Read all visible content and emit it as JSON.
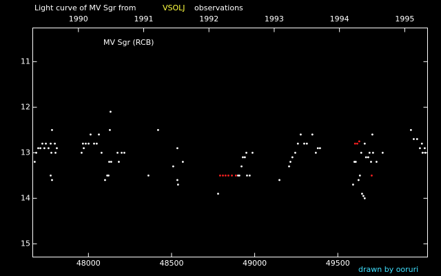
{
  "chart_data": {
    "type": "scatter",
    "title": "Light curve of MV Sgr from",
    "source": "VSOLJ",
    "title_suffix": "observations",
    "annotation": "MV Sgr (RCB)",
    "credit": "drawn by ooruri",
    "xlim": [
      47665,
      50040
    ],
    "xticks": [
      48000,
      48500,
      49000,
      49500
    ],
    "x2lim": [
      1989.3,
      1995.35
    ],
    "x2ticks": [
      1990,
      1991,
      1992,
      1993,
      1994,
      1995
    ],
    "ylim": [
      10.26,
      15.29
    ],
    "yticks": [
      11,
      12,
      13,
      14,
      15
    ],
    "invert_y": true,
    "series": [
      {
        "color": "#ffffff",
        "x": [
          47677,
          47686,
          47698,
          47711,
          47723,
          47735,
          47744,
          47760,
          47773,
          47781,
          47777,
          47773,
          47781,
          47798,
          47802,
          47810,
          47959,
          47967,
          47972,
          47984,
          48001,
          48013,
          48034,
          48050,
          48063,
          48079,
          48100,
          48113,
          48121,
          48133,
          48129,
          48125,
          48137,
          48175,
          48183,
          48200,
          48216,
          48361,
          48419,
          48510,
          48535,
          48535,
          48539,
          48568,
          48780,
          48900,
          48908,
          48921,
          48929,
          48941,
          48950,
          48954,
          48970,
          48987,
          49149,
          49207,
          49215,
          49227,
          49244,
          49260,
          49277,
          49298,
          49314,
          49347,
          49368,
          49380,
          49393,
          49592,
          49600,
          49608,
          49625,
          49633,
          49641,
          49646,
          49654,
          49662,
          49662,
          49670,
          49683,
          49691,
          49700,
          49708,
          49712,
          49733,
          49770,
          49940,
          49957,
          49977,
          49994,
          50006,
          50010,
          50023,
          50027
        ],
        "values": [
          13.2,
          13.0,
          12.9,
          12.9,
          12.8,
          12.9,
          12.8,
          12.9,
          12.8,
          12.5,
          13.0,
          13.5,
          13.6,
          12.8,
          13.0,
          12.9,
          13.0,
          12.8,
          12.9,
          12.8,
          12.8,
          12.6,
          12.8,
          12.8,
          12.6,
          13.0,
          13.6,
          13.5,
          13.5,
          12.1,
          12.5,
          13.2,
          13.2,
          13.0,
          13.2,
          13.0,
          13.0,
          13.5,
          12.5,
          13.3,
          12.9,
          13.6,
          13.7,
          13.2,
          13.9,
          13.5,
          13.5,
          13.3,
          13.1,
          13.1,
          13.0,
          13.5,
          13.5,
          13.0,
          13.6,
          13.3,
          13.2,
          13.1,
          13.0,
          12.8,
          12.6,
          12.8,
          12.8,
          12.6,
          13.0,
          12.9,
          12.9,
          13.7,
          13.2,
          13.2,
          13.6,
          13.5,
          13.0,
          13.9,
          13.95,
          14.0,
          12.8,
          13.1,
          13.1,
          13.0,
          13.2,
          12.6,
          13.0,
          13.2,
          13.0,
          12.5,
          12.7,
          12.7,
          12.9,
          12.8,
          13.0,
          12.9,
          13.0
        ]
      },
      {
        "color": "#ff2020",
        "x": [
          48792,
          48809,
          48825,
          48842,
          48863,
          48887,
          49604,
          49617,
          49629,
          49704
        ],
        "values": [
          13.5,
          13.5,
          13.5,
          13.5,
          13.5,
          13.5,
          12.8,
          12.8,
          12.75,
          13.5
        ]
      }
    ]
  }
}
